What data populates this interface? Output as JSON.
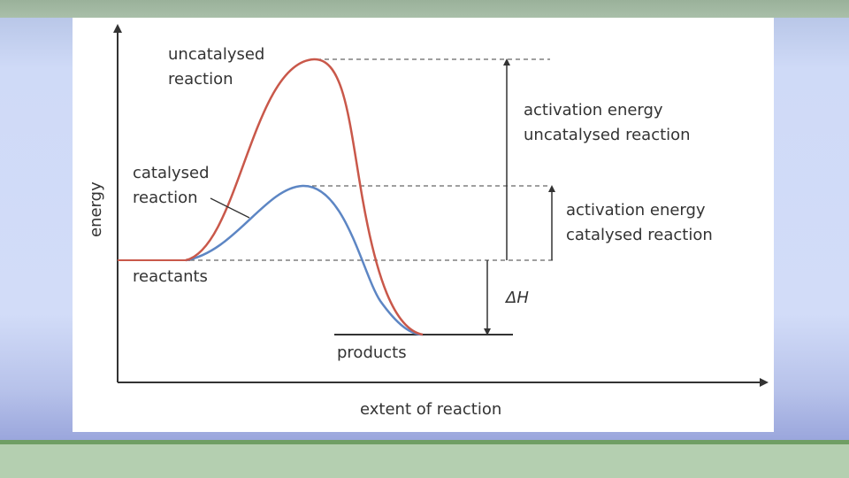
{
  "slide": {
    "colors": {
      "green_band": "#b4cfb0",
      "blue_bg": "#cfd9f5"
    }
  },
  "diagram": {
    "axes": {
      "y_label": "energy",
      "x_label": "extent of reaction"
    },
    "curves": {
      "uncatalysed_label_line1": "uncatalysed",
      "uncatalysed_label_line2": "reaction",
      "catalysed_label_line1": "catalysed",
      "catalysed_label_line2": "reaction",
      "uncatalysed_color": "#c9584a",
      "catalysed_color": "#5d86c4"
    },
    "levels": {
      "reactants": "reactants",
      "products": "products"
    },
    "annotations": {
      "ea_uncat_line1": "activation energy",
      "ea_uncat_line2": "uncatalysed reaction",
      "ea_cat_line1": "activation energy",
      "ea_cat_line2": "catalysed reaction",
      "delta_h": "ΔH"
    }
  }
}
